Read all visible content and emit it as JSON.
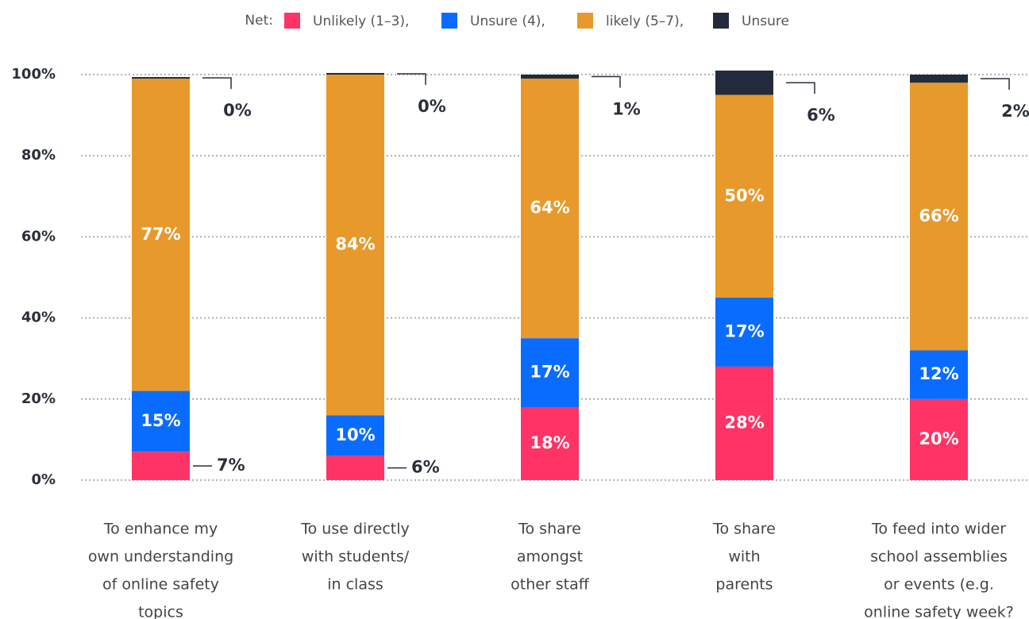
{
  "chart_data": {
    "type": "stacked_bar",
    "legend_prefix": "Net:",
    "categories": [
      [
        "To enhance my",
        "own understanding",
        "of online safety",
        "topics"
      ],
      [
        "To use directly",
        "with students/",
        "in class"
      ],
      [
        "To share",
        "amongst",
        "other staff"
      ],
      [
        "To share",
        "with",
        "parents"
      ],
      [
        "To feed into wider",
        "school assemblies",
        "or events (e.g.",
        "online safety week?"
      ]
    ],
    "series": [
      {
        "name": "Unlikely (1–3),",
        "color": "#ff3366",
        "values": [
          7,
          6,
          18,
          28,
          20
        ],
        "value_labels": [
          "7%",
          "6%",
          "18%",
          "28%",
          "20%"
        ]
      },
      {
        "name": "Unsure (4),",
        "color": "#0a6cff",
        "values": [
          15,
          10,
          17,
          17,
          12
        ],
        "value_labels": [
          "15%",
          "10%",
          "17%",
          "17%",
          "12%"
        ]
      },
      {
        "name": "likely (5–7),",
        "color": "#e8992b",
        "values": [
          77,
          84,
          64,
          50,
          66
        ],
        "value_labels": [
          "77%",
          "84%",
          "64%",
          "50%",
          "66%"
        ]
      },
      {
        "name": "Unsure",
        "color": "#222b3c",
        "values": [
          0.4,
          0.4,
          1,
          6,
          2
        ],
        "value_labels": [
          "0%",
          "0%",
          "1%",
          "6%",
          "2%"
        ]
      }
    ],
    "ylim": [
      0,
      100
    ],
    "yticks": [
      {
        "value": 0,
        "label": "0%"
      },
      {
        "value": 20,
        "label": "20%"
      },
      {
        "value": 40,
        "label": "40%"
      },
      {
        "value": 60,
        "label": "60%"
      },
      {
        "value": 80,
        "label": "80%"
      },
      {
        "value": 100,
        "label": "100%"
      }
    ],
    "grid": true
  }
}
